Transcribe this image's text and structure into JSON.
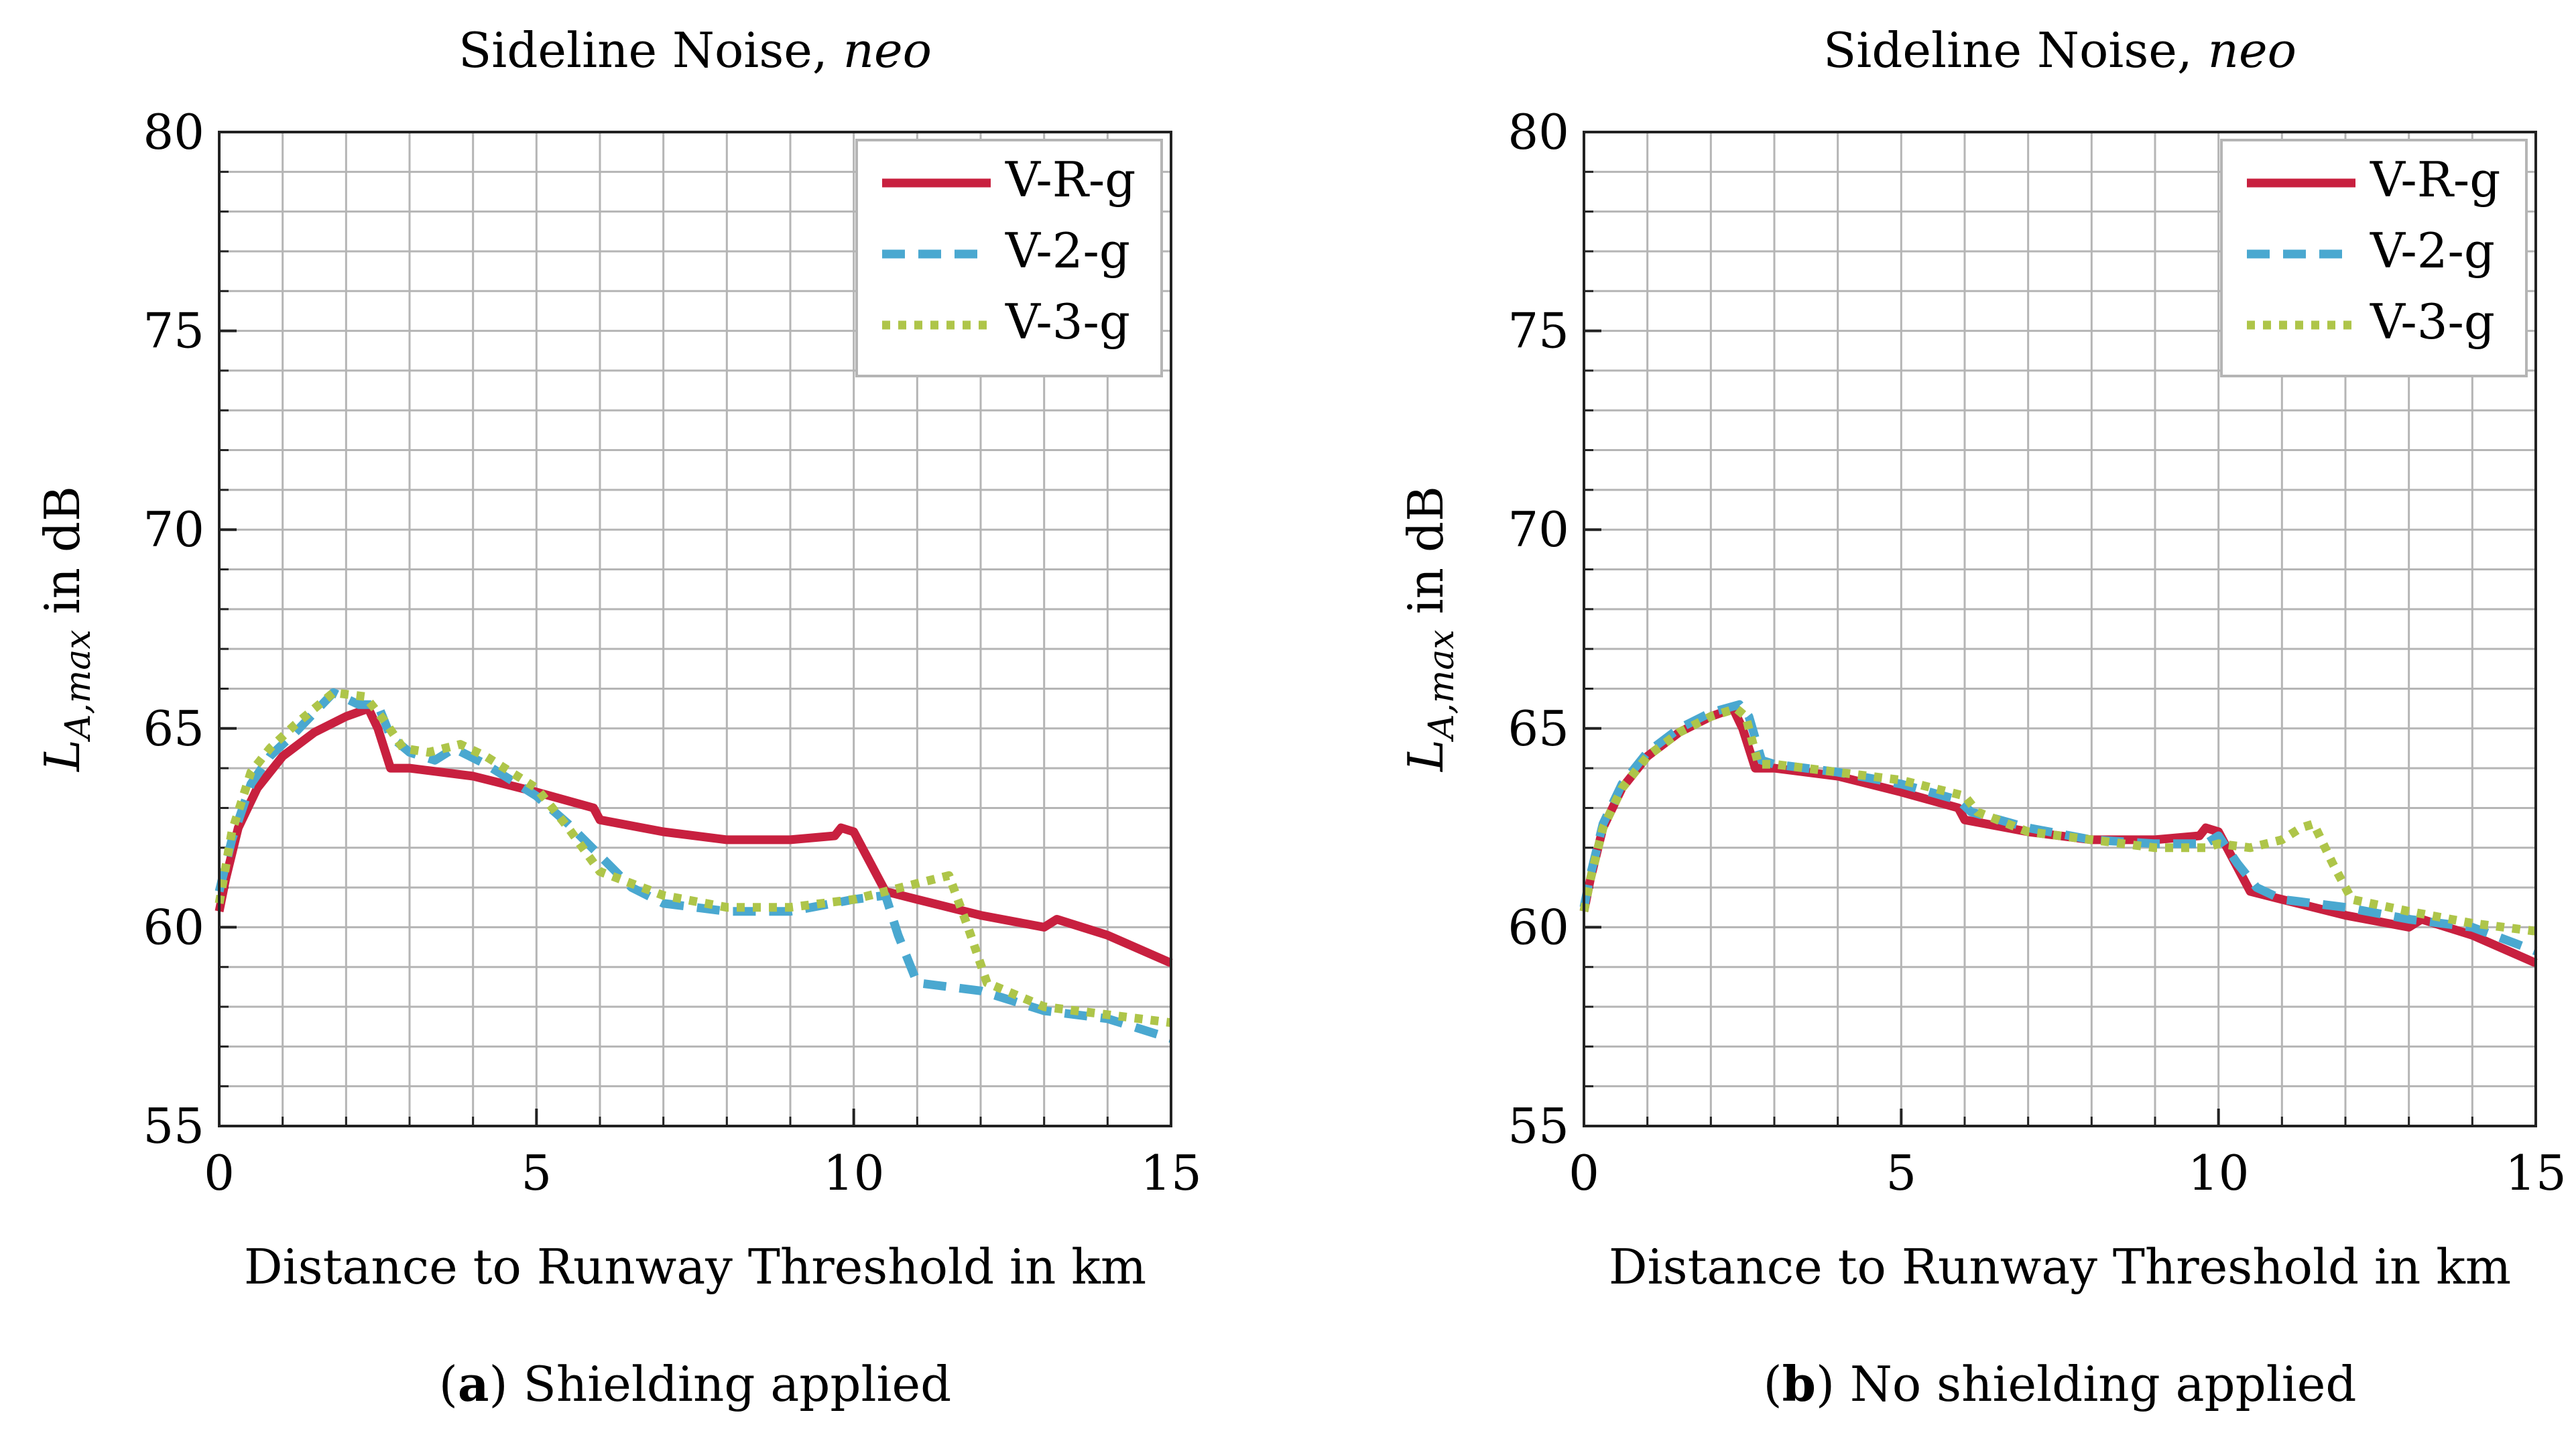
{
  "figure": {
    "captions": [
      {
        "letter": "a",
        "text": ") Shielding applied",
        "open": "("
      },
      {
        "letter": "b",
        "text": ") No shielding applied",
        "open": "("
      }
    ]
  },
  "chart_data": [
    {
      "type": "line",
      "title": "Sideline Noise, ",
      "title_italic": "neo",
      "xlabel": "Distance to Runway Threshold in km",
      "ylabel_main": "L",
      "ylabel_sub": "A,max",
      "ylabel_rest": " in dB",
      "xlim": [
        0,
        15
      ],
      "ylim": [
        55,
        80
      ],
      "xticks": [
        0,
        5,
        10,
        15
      ],
      "yticks": [
        55,
        60,
        65,
        70,
        75,
        80
      ],
      "grid": true,
      "legend_position": "top-right",
      "series": [
        {
          "name": "V-R-g",
          "color": "#c8203f",
          "dash": "solid",
          "x": [
            0,
            0.1,
            0.3,
            0.6,
            1.0,
            1.5,
            2.0,
            2.35,
            2.5,
            2.7,
            3.0,
            4.0,
            5.0,
            5.9,
            6.0,
            7.0,
            8.0,
            9.0,
            9.7,
            9.8,
            10.0,
            10.2,
            10.5,
            11.0,
            12.0,
            13.0,
            13.2,
            14.0,
            15.0
          ],
          "y": [
            60.4,
            61.2,
            62.5,
            63.5,
            64.3,
            64.9,
            65.3,
            65.5,
            65.0,
            64.0,
            64.0,
            63.8,
            63.4,
            63.0,
            62.7,
            62.4,
            62.2,
            62.2,
            62.3,
            62.5,
            62.4,
            61.8,
            60.9,
            60.7,
            60.3,
            60.0,
            60.2,
            59.8,
            59.1
          ]
        },
        {
          "name": "V-2-g",
          "color": "#4aa8d0",
          "dash": "dashed",
          "x": [
            0,
            0.2,
            0.5,
            0.8,
            1.2,
            1.8,
            2.2,
            2.5,
            2.7,
            3.0,
            3.4,
            3.7,
            4.2,
            5.0,
            5.5,
            6.0,
            6.5,
            7.0,
            8.0,
            9.0,
            10.0,
            10.5,
            10.7,
            11.0,
            12.0,
            13.0,
            14.0,
            15.0
          ],
          "y": [
            60.9,
            62.2,
            63.6,
            64.3,
            64.9,
            65.9,
            65.6,
            65.6,
            64.8,
            64.4,
            64.2,
            64.5,
            64.1,
            63.3,
            62.6,
            61.8,
            61.0,
            60.6,
            60.4,
            60.4,
            60.7,
            60.8,
            59.8,
            58.6,
            58.4,
            57.9,
            57.7,
            57.2
          ]
        },
        {
          "name": "V-3-g",
          "color": "#aec549",
          "dash": "dotted",
          "x": [
            0,
            0.2,
            0.5,
            0.8,
            1.2,
            1.8,
            2.3,
            2.6,
            2.9,
            3.3,
            3.8,
            4.2,
            5.0,
            5.5,
            6.0,
            6.5,
            7.0,
            8.0,
            9.0,
            10.0,
            10.5,
            11.0,
            11.5,
            11.8,
            12.1,
            13.0,
            14.0,
            15.0
          ],
          "y": [
            60.6,
            62.4,
            63.9,
            64.5,
            65.1,
            65.9,
            65.8,
            65.2,
            64.5,
            64.4,
            64.6,
            64.3,
            63.5,
            62.5,
            61.4,
            61.1,
            60.8,
            60.5,
            60.5,
            60.7,
            60.9,
            61.1,
            61.3,
            60.0,
            58.6,
            58.0,
            57.8,
            57.6
          ]
        }
      ]
    },
    {
      "type": "line",
      "title": "Sideline Noise, ",
      "title_italic": "neo",
      "xlabel": "Distance to Runway Threshold in km",
      "ylabel_main": "L",
      "ylabel_sub": "A,max",
      "ylabel_rest": " in dB",
      "xlim": [
        0,
        15
      ],
      "ylim": [
        55,
        80
      ],
      "xticks": [
        0,
        5,
        10,
        15
      ],
      "yticks": [
        55,
        60,
        65,
        70,
        75,
        80
      ],
      "grid": true,
      "legend_position": "top-right",
      "series": [
        {
          "name": "V-R-g",
          "color": "#c8203f",
          "dash": "solid",
          "x": [
            0,
            0.1,
            0.3,
            0.6,
            1.0,
            1.5,
            2.0,
            2.35,
            2.5,
            2.7,
            3.0,
            4.0,
            5.0,
            5.9,
            6.0,
            7.0,
            8.0,
            9.0,
            9.7,
            9.8,
            10.0,
            10.2,
            10.5,
            11.0,
            12.0,
            13.0,
            13.2,
            14.0,
            15.0
          ],
          "y": [
            60.4,
            61.2,
            62.5,
            63.5,
            64.3,
            64.9,
            65.3,
            65.5,
            65.0,
            64.0,
            64.0,
            63.8,
            63.4,
            63.0,
            62.7,
            62.4,
            62.2,
            62.2,
            62.3,
            62.5,
            62.4,
            61.8,
            60.9,
            60.7,
            60.3,
            60.0,
            60.2,
            59.8,
            59.1
          ]
        },
        {
          "name": "V-2-g",
          "color": "#4aa8d0",
          "dash": "dashed",
          "x": [
            0,
            0.1,
            0.3,
            0.6,
            1.0,
            1.5,
            2.0,
            2.45,
            2.6,
            2.8,
            3.0,
            4.0,
            5.0,
            5.9,
            6.1,
            7.0,
            8.0,
            9.0,
            9.8,
            10.0,
            10.3,
            10.6,
            11.0,
            12.0,
            13.0,
            14.0,
            15.0
          ],
          "y": [
            60.5,
            61.3,
            62.6,
            63.6,
            64.4,
            65.0,
            65.4,
            65.6,
            65.3,
            64.2,
            64.1,
            63.9,
            63.6,
            63.2,
            62.9,
            62.5,
            62.2,
            62.1,
            62.1,
            62.3,
            61.6,
            61.0,
            60.7,
            60.5,
            60.2,
            60.0,
            59.4
          ]
        },
        {
          "name": "V-3-g",
          "color": "#aec549",
          "dash": "dotted",
          "x": [
            0,
            0.1,
            0.3,
            0.6,
            1.0,
            1.5,
            2.0,
            2.4,
            2.55,
            2.75,
            3.0,
            4.0,
            5.0,
            6.0,
            6.2,
            7.0,
            8.0,
            9.0,
            9.8,
            10.0,
            10.5,
            11.0,
            11.3,
            11.5,
            11.8,
            12.1,
            13.0,
            14.0,
            15.0
          ],
          "y": [
            60.4,
            61.2,
            62.5,
            63.5,
            64.3,
            64.9,
            65.3,
            65.5,
            65.3,
            64.1,
            64.1,
            63.9,
            63.7,
            63.3,
            62.9,
            62.4,
            62.2,
            62.0,
            62.0,
            62.1,
            62.0,
            62.2,
            62.5,
            62.6,
            61.6,
            60.7,
            60.4,
            60.1,
            59.9
          ]
        }
      ]
    }
  ]
}
